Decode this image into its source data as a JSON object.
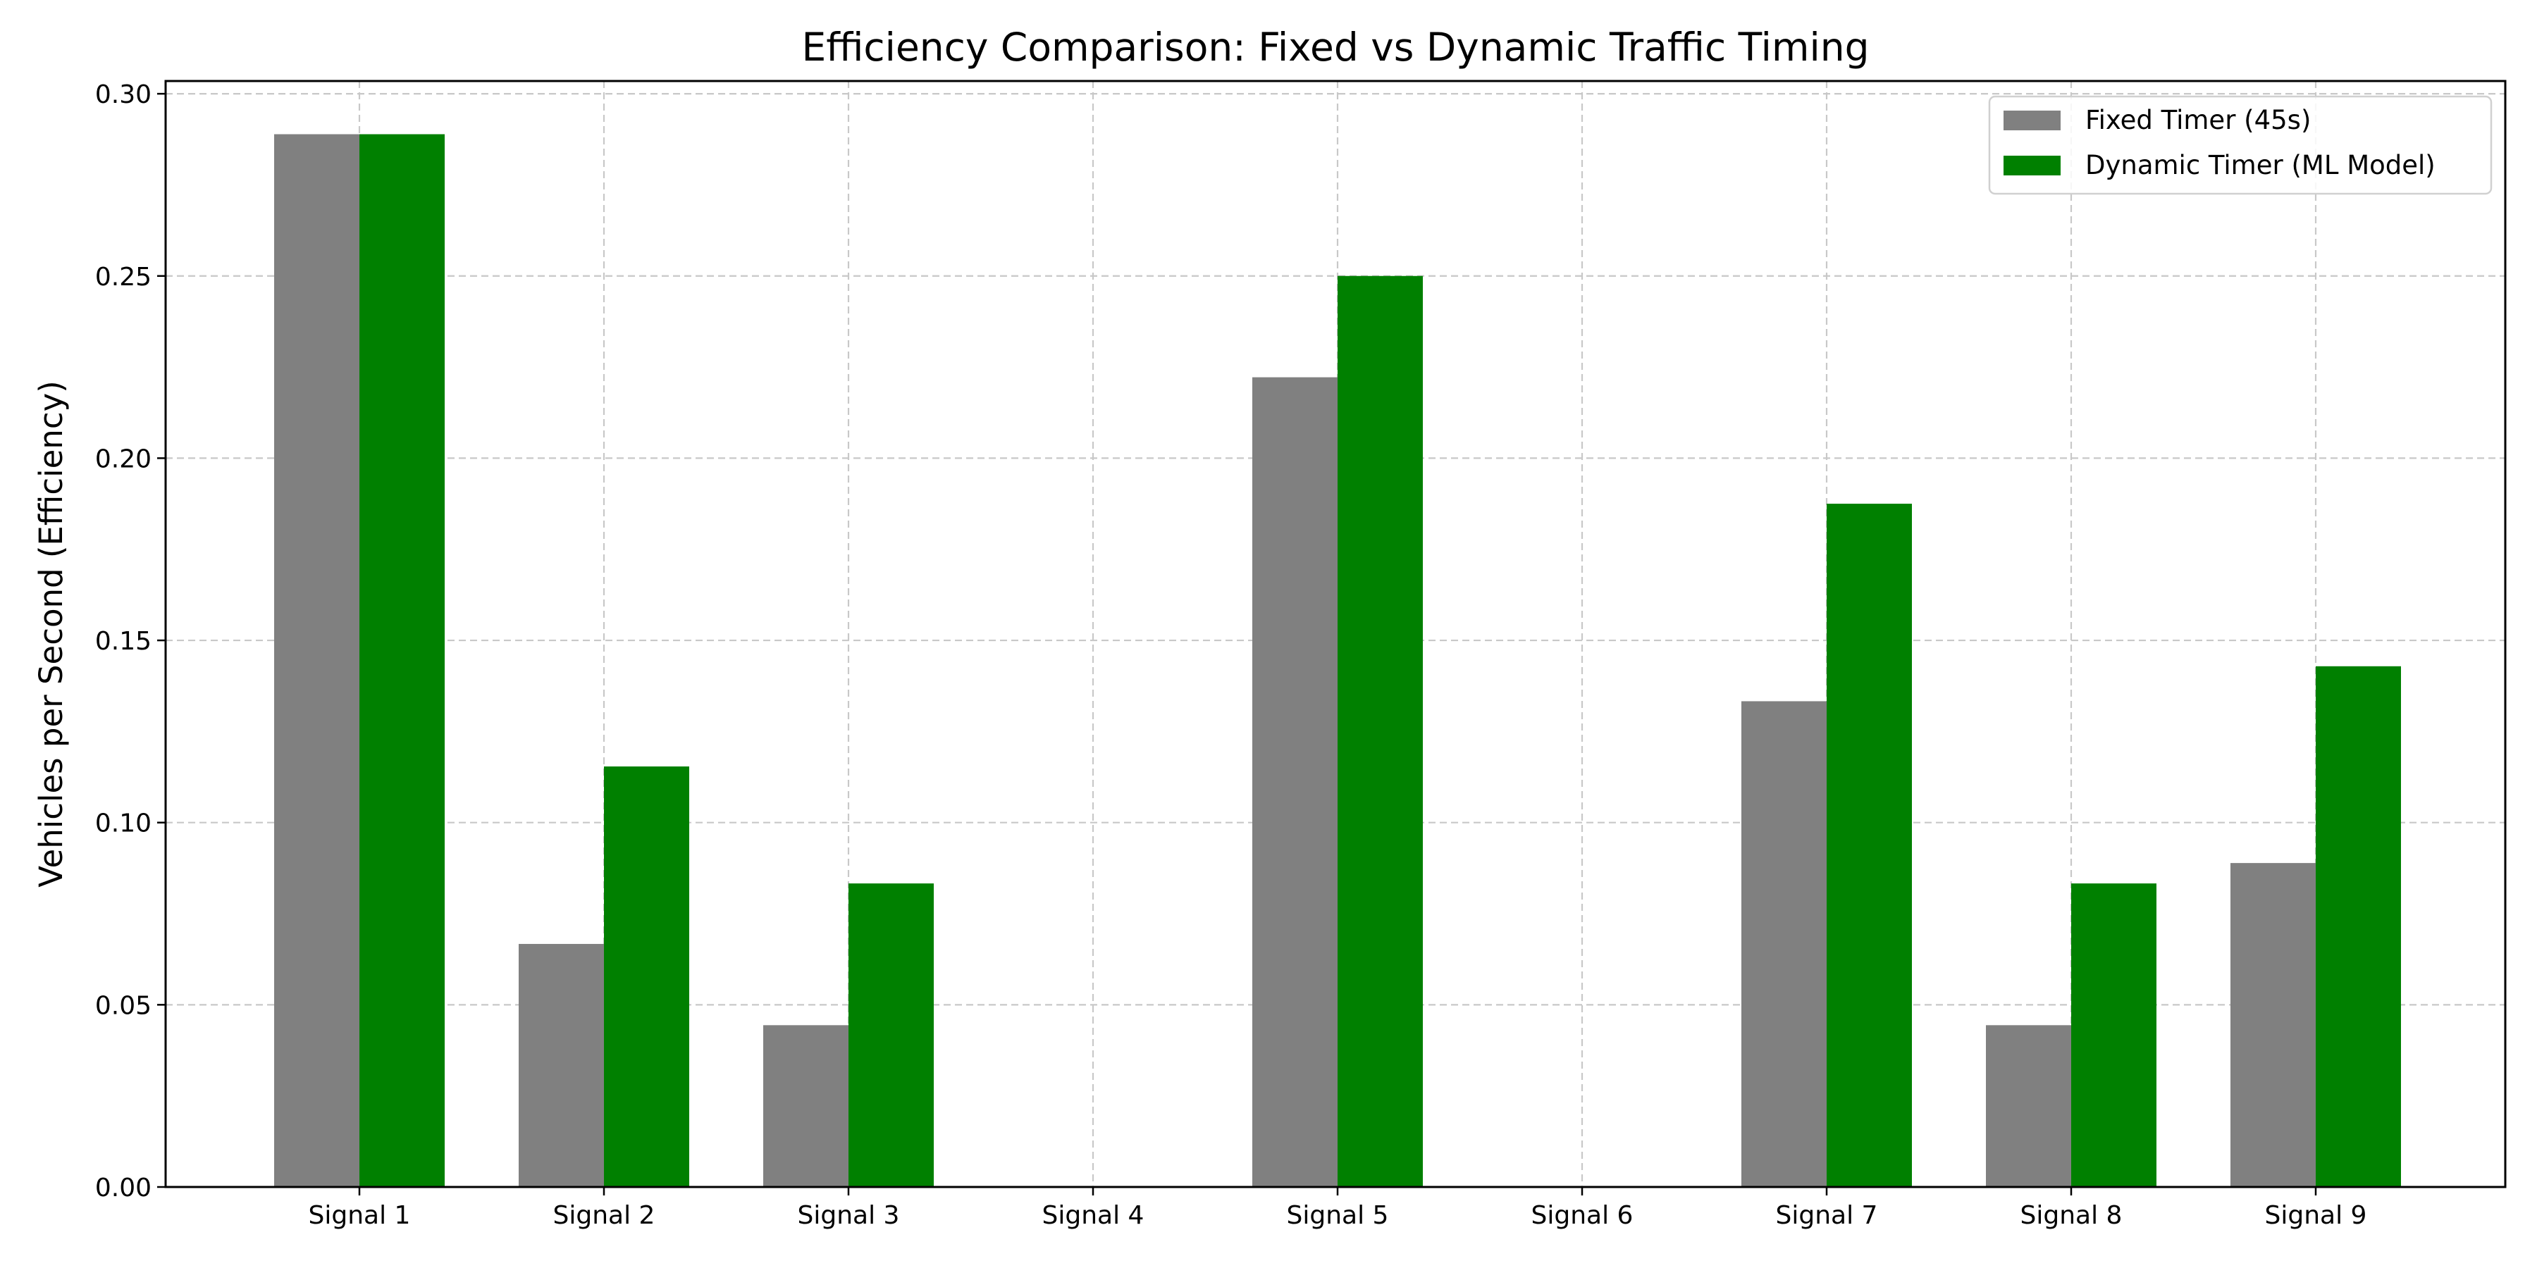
{
  "chart_data": {
    "type": "bar",
    "title": "Efficiency Comparison: Fixed vs Dynamic Traffic Timing",
    "xlabel": "",
    "ylabel": "Vehicles per Second (Efficiency)",
    "categories": [
      "Signal 1",
      "Signal 2",
      "Signal 3",
      "Signal 4",
      "Signal 5",
      "Signal 6",
      "Signal 7",
      "Signal 8",
      "Signal 9"
    ],
    "series": [
      {
        "name": "Fixed Timer (45s)",
        "color": "#808080",
        "values": [
          0.2889,
          0.0667,
          0.0444,
          0.0,
          0.2222,
          0.0,
          0.1333,
          0.0444,
          0.0889
        ]
      },
      {
        "name": "Dynamic Timer (ML Model)",
        "color": "#008000",
        "values": [
          0.2889,
          0.1154,
          0.0833,
          0.0,
          0.25,
          0.0,
          0.1875,
          0.0833,
          0.1429
        ]
      }
    ],
    "ylim": [
      0,
      0.3035
    ],
    "yticks": [
      0.0,
      0.05,
      0.1,
      0.15,
      0.2,
      0.25,
      0.3
    ],
    "ytick_labels": [
      "0.00",
      "0.05",
      "0.10",
      "0.15",
      "0.20",
      "0.25",
      "0.30"
    ],
    "grid": true,
    "legend_position": "top-right"
  }
}
